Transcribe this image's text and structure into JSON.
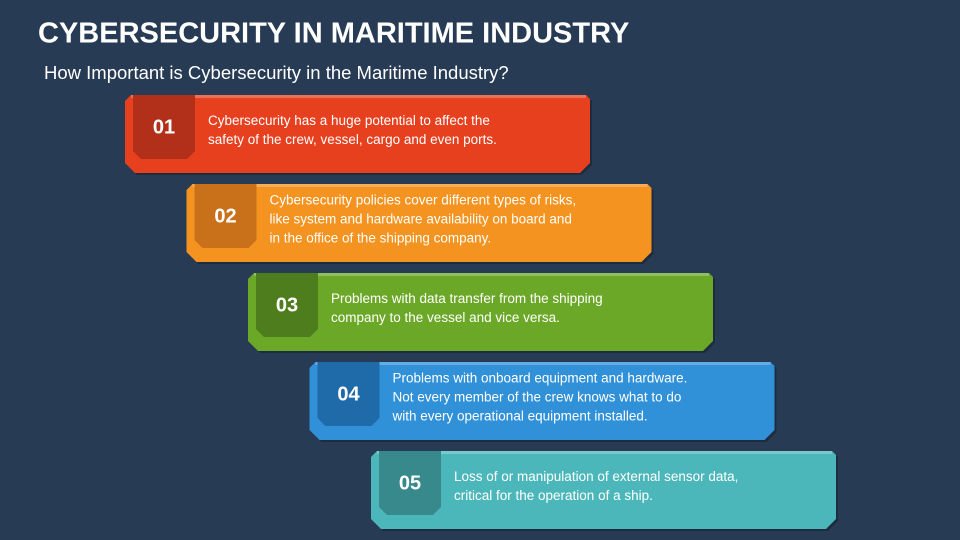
{
  "header": {
    "title": "CYBERSECURITY IN MARITIME INDUSTRY",
    "subtitle": "How Important is Cybersecurity in the Maritime Industry?"
  },
  "items": [
    {
      "number": "01",
      "lines": [
        "Cybersecurity has a huge potential to affect the",
        "safety of the crew, vessel, cargo and even ports."
      ]
    },
    {
      "number": "02",
      "lines": [
        "Cybersecurity policies cover different types of risks,",
        "like system and hardware availability on board and",
        "in the office of the shipping company."
      ]
    },
    {
      "number": "03",
      "lines": [
        "Problems with data transfer from the shipping",
        "company to the vessel and vice versa."
      ]
    },
    {
      "number": "04",
      "lines": [
        "Problems with onboard equipment and hardware.",
        "Not every member of the crew knows what to do",
        "with every operational equipment installed."
      ]
    },
    {
      "number": "05",
      "lines": [
        "Loss of or manipulation of external sensor data,",
        "critical for the operation of a ship."
      ]
    }
  ]
}
